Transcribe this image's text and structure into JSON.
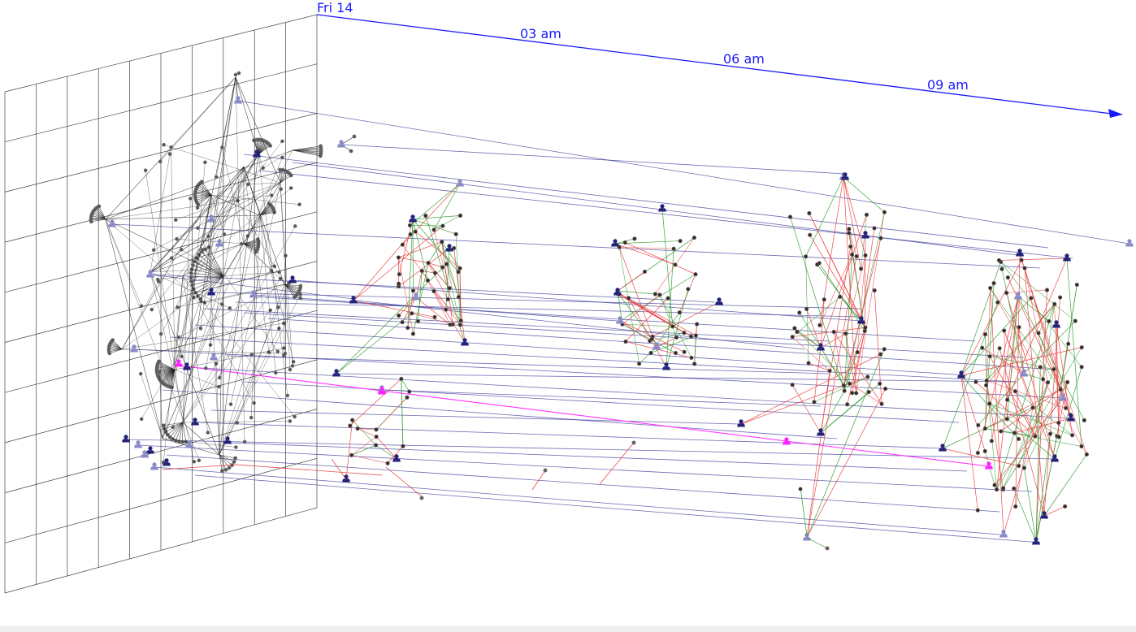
{
  "timeline": {
    "start_label": "Fri 14",
    "tick_labels": [
      "03 am",
      "06 am",
      "09 am"
    ],
    "axis_color": "#1a1aff"
  },
  "colors": {
    "grid": "#444444",
    "timeline_link": "#3a3a9a",
    "timeline_link_highlight": "#ff33ff",
    "in_plane_edge": "#1a1a1a",
    "edge_red": "#e83a3a",
    "edge_green": "#2a9a2a",
    "person_dark": "#23237a",
    "person_light": "#8a8ac8",
    "person_highlight": "#ff22ff",
    "node": "#333333"
  },
  "icons": {
    "person": "person-icon",
    "node": "dot-node-icon",
    "arrow": "arrowhead-icon"
  }
}
